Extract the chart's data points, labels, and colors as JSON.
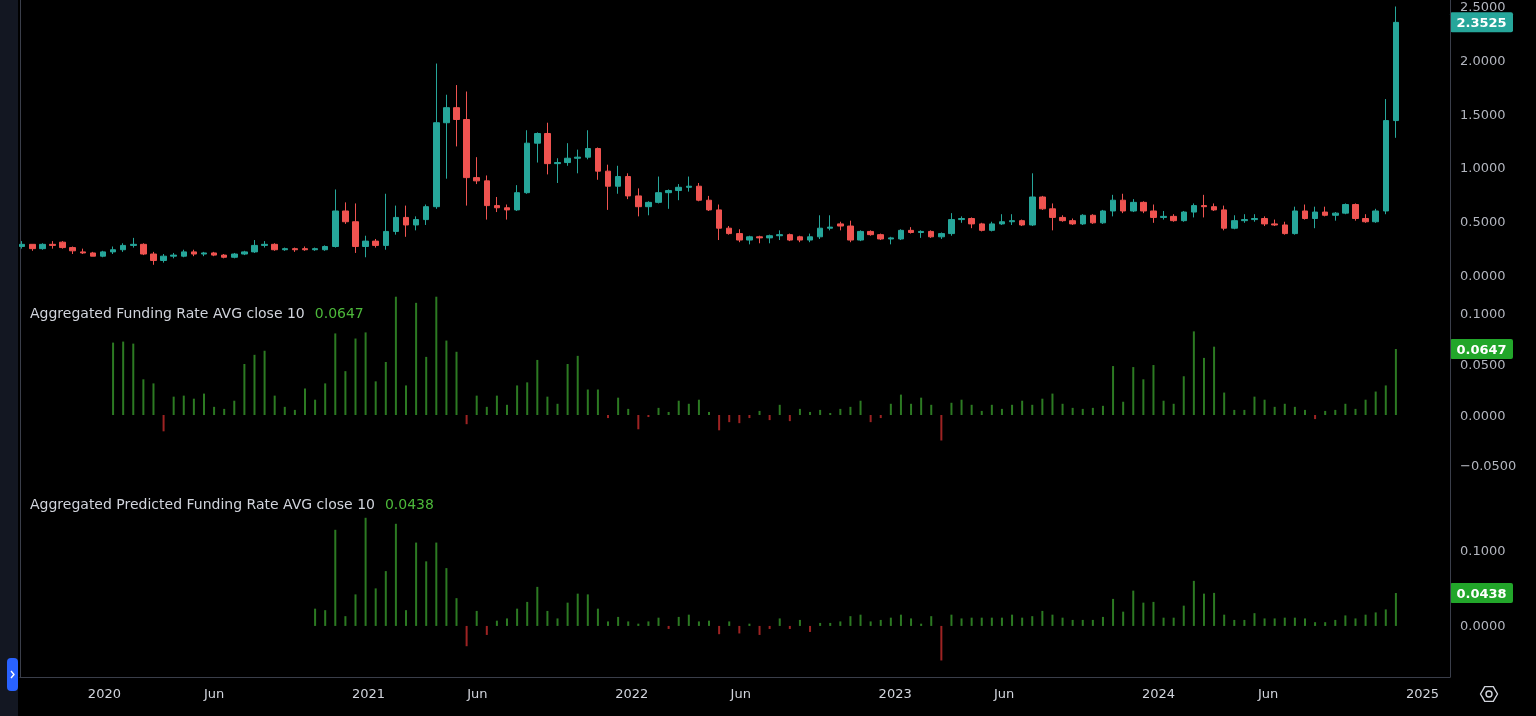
{
  "chart_data": [
    {
      "type": "candlestick",
      "x": [
        "2019-09-09",
        "2019-09-23",
        "2019-10-07",
        "2019-10-21",
        "2019-11-04",
        "2019-11-18",
        "2019-12-02",
        "2019-12-16",
        "2019-12-30",
        "2020-01-13",
        "2020-01-27",
        "2020-02-10",
        "2020-02-24",
        "2020-03-09",
        "2020-03-23",
        "2020-04-06",
        "2020-04-20",
        "2020-05-04",
        "2020-05-18",
        "2020-06-01",
        "2020-06-15",
        "2020-06-29",
        "2020-07-13",
        "2020-07-27",
        "2020-08-10",
        "2020-08-24",
        "2020-09-07",
        "2020-09-21",
        "2020-10-05",
        "2020-10-19",
        "2020-11-02",
        "2020-11-16",
        "2020-11-30",
        "2020-12-14",
        "2020-12-28",
        "2021-01-11",
        "2021-01-25",
        "2021-02-08",
        "2021-02-22",
        "2021-03-08",
        "2021-03-22",
        "2021-04-05",
        "2021-04-19",
        "2021-05-03",
        "2021-05-17",
        "2021-05-31",
        "2021-06-14",
        "2021-06-28",
        "2021-07-12",
        "2021-07-26",
        "2021-08-09",
        "2021-08-23",
        "2021-09-06",
        "2021-09-20",
        "2021-10-04",
        "2021-10-18",
        "2021-11-01",
        "2021-11-15",
        "2021-11-29",
        "2021-12-13",
        "2021-12-27",
        "2022-01-10",
        "2022-01-24",
        "2022-02-07",
        "2022-02-21",
        "2022-03-07",
        "2022-03-21",
        "2022-04-04",
        "2022-04-18",
        "2022-05-02",
        "2022-05-16",
        "2022-05-30",
        "2022-06-13",
        "2022-06-27",
        "2022-07-11",
        "2022-07-25",
        "2022-08-08",
        "2022-08-22",
        "2022-09-05",
        "2022-09-19",
        "2022-10-03",
        "2022-10-17",
        "2022-10-31",
        "2022-11-14",
        "2022-11-28",
        "2022-12-12",
        "2022-12-26",
        "2023-01-09",
        "2023-01-23",
        "2023-02-06",
        "2023-02-20",
        "2023-03-06",
        "2023-03-20",
        "2023-04-03",
        "2023-04-17",
        "2023-05-01",
        "2023-05-15",
        "2023-05-29",
        "2023-06-12",
        "2023-06-26",
        "2023-07-10",
        "2023-07-24",
        "2023-08-07",
        "2023-08-21",
        "2023-09-04",
        "2023-09-18",
        "2023-10-02",
        "2023-10-16",
        "2023-10-30",
        "2023-11-13",
        "2023-11-27",
        "2023-12-11",
        "2023-12-25",
        "2024-01-08",
        "2024-01-22",
        "2024-02-05",
        "2024-02-19",
        "2024-03-04",
        "2024-03-18",
        "2024-04-01",
        "2024-04-15",
        "2024-04-29",
        "2024-05-13",
        "2024-05-27",
        "2024-06-10",
        "2024-06-24",
        "2024-07-08",
        "2024-07-22",
        "2024-08-05",
        "2024-08-19",
        "2024-09-02",
        "2024-09-16",
        "2024-09-30",
        "2024-10-14",
        "2024-10-28",
        "2024-11-11",
        "2024-11-25"
      ],
      "ohlc": [
        [
          0.27,
          0.32,
          0.25,
          0.29
        ],
        [
          0.29,
          0.29,
          0.23,
          0.25
        ],
        [
          0.25,
          0.3,
          0.24,
          0.29
        ],
        [
          0.29,
          0.32,
          0.25,
          0.28
        ],
        [
          0.31,
          0.32,
          0.25,
          0.26
        ],
        [
          0.26,
          0.27,
          0.2,
          0.23
        ],
        [
          0.22,
          0.25,
          0.2,
          0.21
        ],
        [
          0.21,
          0.22,
          0.18,
          0.18
        ],
        [
          0.18,
          0.23,
          0.17,
          0.22
        ],
        [
          0.22,
          0.27,
          0.2,
          0.24
        ],
        [
          0.24,
          0.3,
          0.22,
          0.28
        ],
        [
          0.28,
          0.35,
          0.26,
          0.29
        ],
        [
          0.29,
          0.3,
          0.19,
          0.2
        ],
        [
          0.2,
          0.22,
          0.1,
          0.14
        ],
        [
          0.14,
          0.2,
          0.12,
          0.18
        ],
        [
          0.18,
          0.21,
          0.16,
          0.19
        ],
        [
          0.18,
          0.24,
          0.17,
          0.22
        ],
        [
          0.22,
          0.24,
          0.18,
          0.2
        ],
        [
          0.2,
          0.22,
          0.18,
          0.21
        ],
        [
          0.21,
          0.22,
          0.18,
          0.19
        ],
        [
          0.19,
          0.2,
          0.16,
          0.17
        ],
        [
          0.17,
          0.21,
          0.16,
          0.2
        ],
        [
          0.2,
          0.23,
          0.19,
          0.22
        ],
        [
          0.22,
          0.33,
          0.21,
          0.28
        ],
        [
          0.28,
          0.32,
          0.26,
          0.29
        ],
        [
          0.29,
          0.3,
          0.23,
          0.24
        ],
        [
          0.24,
          0.26,
          0.23,
          0.25
        ],
        [
          0.25,
          0.26,
          0.22,
          0.24
        ],
        [
          0.25,
          0.27,
          0.23,
          0.24
        ],
        [
          0.24,
          0.26,
          0.23,
          0.25
        ],
        [
          0.24,
          0.28,
          0.23,
          0.27
        ],
        [
          0.27,
          0.8,
          0.26,
          0.6
        ],
        [
          0.6,
          0.68,
          0.48,
          0.5
        ],
        [
          0.5,
          0.67,
          0.21,
          0.27
        ],
        [
          0.27,
          0.37,
          0.17,
          0.32
        ],
        [
          0.32,
          0.34,
          0.26,
          0.28
        ],
        [
          0.28,
          0.76,
          0.24,
          0.41
        ],
        [
          0.41,
          0.65,
          0.38,
          0.54
        ],
        [
          0.54,
          0.65,
          0.36,
          0.47
        ],
        [
          0.47,
          0.55,
          0.42,
          0.52
        ],
        [
          0.52,
          0.66,
          0.47,
          0.64
        ],
        [
          0.64,
          1.97,
          0.62,
          1.42
        ],
        [
          1.42,
          1.68,
          0.9,
          1.56
        ],
        [
          1.56,
          1.77,
          1.2,
          1.45
        ],
        [
          1.45,
          1.71,
          0.65,
          0.91
        ],
        [
          0.91,
          1.1,
          0.85,
          0.88
        ],
        [
          0.88,
          0.93,
          0.52,
          0.65
        ],
        [
          0.65,
          0.73,
          0.59,
          0.63
        ],
        [
          0.63,
          0.66,
          0.52,
          0.61
        ],
        [
          0.61,
          0.84,
          0.6,
          0.77
        ],
        [
          0.77,
          1.35,
          0.76,
          1.23
        ],
        [
          1.23,
          1.33,
          1.05,
          1.32
        ],
        [
          1.32,
          1.42,
          0.94,
          1.04
        ],
        [
          1.04,
          1.09,
          0.86,
          1.05
        ],
        [
          1.05,
          1.23,
          1.02,
          1.09
        ],
        [
          1.09,
          1.17,
          0.95,
          1.1
        ],
        [
          1.1,
          1.35,
          1.08,
          1.18
        ],
        [
          1.18,
          1.19,
          0.89,
          0.97
        ],
        [
          0.97,
          1.03,
          0.61,
          0.83
        ],
        [
          0.83,
          1.02,
          0.76,
          0.92
        ],
        [
          0.92,
          0.95,
          0.71,
          0.74
        ],
        [
          0.74,
          0.81,
          0.55,
          0.64
        ],
        [
          0.64,
          0.69,
          0.56,
          0.68
        ],
        [
          0.68,
          0.92,
          0.67,
          0.77
        ],
        [
          0.77,
          0.8,
          0.62,
          0.79
        ],
        [
          0.79,
          0.85,
          0.7,
          0.82
        ],
        [
          0.82,
          0.92,
          0.78,
          0.83
        ],
        [
          0.83,
          0.86,
          0.69,
          0.7
        ],
        [
          0.7,
          0.74,
          0.6,
          0.61
        ],
        [
          0.61,
          0.66,
          0.33,
          0.44
        ],
        [
          0.44,
          0.46,
          0.38,
          0.39
        ],
        [
          0.39,
          0.43,
          0.31,
          0.33
        ],
        [
          0.33,
          0.37,
          0.29,
          0.36
        ],
        [
          0.36,
          0.37,
          0.3,
          0.35
        ],
        [
          0.35,
          0.38,
          0.3,
          0.37
        ],
        [
          0.37,
          0.42,
          0.33,
          0.38
        ],
        [
          0.38,
          0.39,
          0.32,
          0.33
        ],
        [
          0.36,
          0.37,
          0.31,
          0.33
        ],
        [
          0.33,
          0.39,
          0.31,
          0.36
        ],
        [
          0.36,
          0.56,
          0.34,
          0.44
        ],
        [
          0.44,
          0.56,
          0.42,
          0.45
        ],
        [
          0.48,
          0.5,
          0.42,
          0.46
        ],
        [
          0.46,
          0.51,
          0.31,
          0.33
        ],
        [
          0.33,
          0.42,
          0.32,
          0.41
        ],
        [
          0.41,
          0.42,
          0.37,
          0.38
        ],
        [
          0.38,
          0.39,
          0.33,
          0.34
        ],
        [
          0.34,
          0.36,
          0.29,
          0.35
        ],
        [
          0.34,
          0.43,
          0.33,
          0.42
        ],
        [
          0.42,
          0.45,
          0.39,
          0.4
        ],
        [
          0.4,
          0.42,
          0.35,
          0.41
        ],
        [
          0.41,
          0.42,
          0.35,
          0.36
        ],
        [
          0.36,
          0.4,
          0.34,
          0.39
        ],
        [
          0.39,
          0.58,
          0.37,
          0.52
        ],
        [
          0.52,
          0.55,
          0.49,
          0.53
        ],
        [
          0.53,
          0.54,
          0.44,
          0.48
        ],
        [
          0.48,
          0.49,
          0.41,
          0.42
        ],
        [
          0.42,
          0.5,
          0.41,
          0.48
        ],
        [
          0.48,
          0.57,
          0.47,
          0.5
        ],
        [
          0.5,
          0.57,
          0.47,
          0.51
        ],
        [
          0.51,
          0.52,
          0.46,
          0.47
        ],
        [
          0.47,
          0.95,
          0.46,
          0.73
        ],
        [
          0.73,
          0.74,
          0.61,
          0.62
        ],
        [
          0.62,
          0.67,
          0.42,
          0.54
        ],
        [
          0.54,
          0.56,
          0.5,
          0.51
        ],
        [
          0.51,
          0.53,
          0.47,
          0.48
        ],
        [
          0.48,
          0.57,
          0.47,
          0.56
        ],
        [
          0.56,
          0.57,
          0.48,
          0.49
        ],
        [
          0.49,
          0.61,
          0.48,
          0.6
        ],
        [
          0.6,
          0.75,
          0.55,
          0.7
        ],
        [
          0.7,
          0.76,
          0.58,
          0.6
        ],
        [
          0.6,
          0.71,
          0.59,
          0.68
        ],
        [
          0.68,
          0.69,
          0.58,
          0.6
        ],
        [
          0.6,
          0.66,
          0.49,
          0.54
        ],
        [
          0.54,
          0.6,
          0.52,
          0.55
        ],
        [
          0.55,
          0.57,
          0.5,
          0.51
        ],
        [
          0.51,
          0.6,
          0.5,
          0.59
        ],
        [
          0.59,
          0.67,
          0.54,
          0.65
        ],
        [
          0.65,
          0.75,
          0.54,
          0.64
        ],
        [
          0.64,
          0.67,
          0.6,
          0.61
        ],
        [
          0.61,
          0.65,
          0.42,
          0.44
        ],
        [
          0.44,
          0.56,
          0.43,
          0.51
        ],
        [
          0.51,
          0.57,
          0.49,
          0.52
        ],
        [
          0.52,
          0.57,
          0.5,
          0.53
        ],
        [
          0.53,
          0.55,
          0.46,
          0.48
        ],
        [
          0.48,
          0.52,
          0.46,
          0.47
        ],
        [
          0.47,
          0.5,
          0.38,
          0.39
        ],
        [
          0.39,
          0.64,
          0.38,
          0.6
        ],
        [
          0.6,
          0.66,
          0.52,
          0.53
        ],
        [
          0.53,
          0.64,
          0.44,
          0.59
        ],
        [
          0.59,
          0.64,
          0.55,
          0.56
        ],
        [
          0.56,
          0.59,
          0.51,
          0.58
        ],
        [
          0.58,
          0.67,
          0.57,
          0.66
        ],
        [
          0.66,
          0.67,
          0.51,
          0.53
        ],
        [
          0.53,
          0.57,
          0.49,
          0.5
        ],
        [
          0.5,
          0.62,
          0.49,
          0.6
        ],
        [
          0.6,
          1.64,
          0.57,
          1.44
        ],
        [
          1.44,
          2.5,
          1.28,
          2.3525
        ]
      ],
      "colors": [
        "#26a69a",
        "#ef5350",
        "#26a69a",
        "#ef5350",
        "#ef5350",
        "#ef5350",
        "#ef5350",
        "#ef5350",
        "#26a69a",
        "#26a69a",
        "#26a69a",
        "#26a69a",
        "#ef5350",
        "#ef5350",
        "#26a69a",
        "#26a69a",
        "#26a69a",
        "#ef5350",
        "#26a69a",
        "#ef5350",
        "#ef5350",
        "#26a69a",
        "#26a69a",
        "#26a69a",
        "#26a69a",
        "#ef5350",
        "#26a69a",
        "#ef5350",
        "#ef5350",
        "#26a69a",
        "#26a69a",
        "#26a69a",
        "#ef5350",
        "#ef5350",
        "#26a69a",
        "#ef5350",
        "#26a69a",
        "#26a69a",
        "#ef5350",
        "#26a69a",
        "#26a69a",
        "#26a69a",
        "#26a69a",
        "#ef5350",
        "#ef5350",
        "#ef5350",
        "#ef5350",
        "#ef5350",
        "#ef5350",
        "#26a69a",
        "#26a69a",
        "#26a69a",
        "#ef5350",
        "#26a69a",
        "#26a69a",
        "#26a69a",
        "#26a69a",
        "#ef5350",
        "#ef5350",
        "#26a69a",
        "#ef5350",
        "#ef5350",
        "#26a69a",
        "#26a69a",
        "#26a69a",
        "#26a69a",
        "#26a69a",
        "#ef5350",
        "#ef5350",
        "#ef5350",
        "#ef5350",
        "#ef5350",
        "#26a69a",
        "#ef5350",
        "#26a69a",
        "#26a69a",
        "#ef5350",
        "#ef5350",
        "#26a69a",
        "#26a69a",
        "#26a69a",
        "#ef5350",
        "#ef5350",
        "#26a69a",
        "#ef5350",
        "#ef5350",
        "#26a69a",
        "#26a69a",
        "#ef5350",
        "#26a69a",
        "#ef5350",
        "#26a69a",
        "#26a69a",
        "#26a69a",
        "#ef5350",
        "#ef5350",
        "#26a69a",
        "#26a69a",
        "#26a69a",
        "#ef5350",
        "#26a69a",
        "#ef5350",
        "#ef5350",
        "#ef5350",
        "#ef5350",
        "#26a69a",
        "#ef5350",
        "#26a69a",
        "#26a69a",
        "#ef5350",
        "#26a69a",
        "#ef5350",
        "#ef5350",
        "#26a69a",
        "#ef5350",
        "#26a69a",
        "#26a69a",
        "#ef5350",
        "#ef5350",
        "#ef5350",
        "#26a69a",
        "#26a69a",
        "#26a69a",
        "#ef5350",
        "#ef5350",
        "#ef5350",
        "#26a69a",
        "#ef5350",
        "#26a69a",
        "#ef5350",
        "#26a69a",
        "#26a69a",
        "#ef5350",
        "#ef5350",
        "#26a69a",
        "#26a69a",
        "#26a69a"
      ],
      "xlim": [
        "2019-09-06",
        "2025-02-08"
      ],
      "ylim": [
        -0.19,
        2.56
      ],
      "yticks": [
        {
          "value": 0,
          "label": "0.0000"
        },
        {
          "value": 0.5,
          "label": "0.5000"
        },
        {
          "value": 1,
          "label": "1.0000"
        },
        {
          "value": 1.5,
          "label": "1.5000"
        },
        {
          "value": 2,
          "label": "2.0000"
        },
        {
          "value": 2.5,
          "label": "2.5000"
        }
      ],
      "tick_labels": "y",
      "grid": false,
      "annotations": [
        "2.3525"
      ]
    },
    {
      "type": "bar",
      "title": "Aggregated Funding Rate AVG close 10",
      "x": [
        "2020-01-13",
        "2020-01-27",
        "2020-02-10",
        "2020-02-24",
        "2020-03-09",
        "2020-03-23",
        "2020-04-06",
        "2020-04-20",
        "2020-05-04",
        "2020-05-18",
        "2020-06-01",
        "2020-06-15",
        "2020-06-29",
        "2020-07-13",
        "2020-07-27",
        "2020-08-10",
        "2020-08-24",
        "2020-09-07",
        "2020-09-21",
        "2020-10-05",
        "2020-10-19",
        "2020-11-02",
        "2020-11-16",
        "2020-11-30",
        "2020-12-14",
        "2020-12-28",
        "2021-01-11",
        "2021-01-25",
        "2021-02-08",
        "2021-02-22",
        "2021-03-08",
        "2021-03-22",
        "2021-04-05",
        "2021-04-19",
        "2021-05-03",
        "2021-05-17",
        "2021-05-31",
        "2021-06-14",
        "2021-06-28",
        "2021-07-12",
        "2021-07-26",
        "2021-08-09",
        "2021-08-23",
        "2021-09-06",
        "2021-09-20",
        "2021-10-04",
        "2021-10-18",
        "2021-11-01",
        "2021-11-15",
        "2021-11-29",
        "2021-12-13",
        "2021-12-27",
        "2022-01-10",
        "2022-01-24",
        "2022-02-07",
        "2022-02-21",
        "2022-03-07",
        "2022-03-21",
        "2022-04-04",
        "2022-04-18",
        "2022-05-02",
        "2022-05-16",
        "2022-05-30",
        "2022-06-13",
        "2022-06-27",
        "2022-07-11",
        "2022-07-25",
        "2022-08-08",
        "2022-08-22",
        "2022-09-05",
        "2022-09-19",
        "2022-10-03",
        "2022-10-17",
        "2022-10-31",
        "2022-11-14",
        "2022-11-28",
        "2022-12-12",
        "2022-12-26",
        "2023-01-09",
        "2023-01-23",
        "2023-02-06",
        "2023-02-20",
        "2023-03-06",
        "2023-03-20",
        "2023-04-03",
        "2023-04-17",
        "2023-05-01",
        "2023-05-15",
        "2023-05-29",
        "2023-06-12",
        "2023-06-26",
        "2023-07-10",
        "2023-07-24",
        "2023-08-07",
        "2023-08-21",
        "2023-09-04",
        "2023-09-18",
        "2023-10-02",
        "2023-10-16",
        "2023-10-30",
        "2023-11-13",
        "2023-11-27",
        "2023-12-11",
        "2023-12-25",
        "2024-01-08",
        "2024-01-22",
        "2024-02-05",
        "2024-02-19",
        "2024-03-04",
        "2024-03-18",
        "2024-04-01",
        "2024-04-15",
        "2024-04-29",
        "2024-05-13",
        "2024-05-27",
        "2024-06-10",
        "2024-06-24",
        "2024-07-08",
        "2024-07-22",
        "2024-08-05",
        "2024-08-19",
        "2024-09-02",
        "2024-09-16",
        "2024-09-30",
        "2024-10-14",
        "2024-10-28",
        "2024-11-11",
        "2024-11-25"
      ],
      "values": [
        0.071,
        0.072,
        0.07,
        0.035,
        0.031,
        -0.016,
        0.018,
        0.019,
        0.016,
        0.021,
        0.008,
        0.006,
        0.014,
        0.05,
        0.059,
        0.063,
        0.019,
        0.008,
        0.005,
        0.026,
        0.015,
        0.031,
        0.08,
        0.043,
        0.075,
        0.081,
        0.033,
        0.052,
        0.116,
        0.029,
        0.11,
        0.057,
        0.116,
        0.073,
        0.062,
        -0.009,
        0.019,
        0.008,
        0.019,
        0.01,
        0.029,
        0.032,
        0.054,
        0.018,
        0.011,
        0.05,
        0.058,
        0.025,
        0.025,
        -0.003,
        0.017,
        0.006,
        -0.014,
        -0.002,
        0.007,
        0.003,
        0.014,
        0.011,
        0.015,
        0.003,
        -0.015,
        -0.007,
        -0.008,
        -0.003,
        0.004,
        -0.005,
        0.01,
        -0.006,
        0.006,
        0.003,
        0.005,
        0.002,
        0.006,
        0.008,
        0.014,
        -0.007,
        -0.003,
        0.011,
        0.02,
        0.011,
        0.017,
        0.01,
        -0.025,
        0.012,
        0.015,
        0.01,
        0.004,
        0.01,
        0.006,
        0.01,
        0.014,
        0.01,
        0.016,
        0.021,
        0.011,
        0.007,
        0.006,
        0.007,
        0.009,
        0.048,
        0.013,
        0.047,
        0.035,
        0.049,
        0.014,
        0.011,
        0.038,
        0.082,
        0.056,
        0.067,
        0.022,
        0.005,
        0.005,
        0.018,
        0.015,
        0.008,
        0.011,
        0.008,
        0.005,
        -0.004,
        0.004,
        0.005,
        0.011,
        0.006,
        0.015,
        0.023,
        0.029,
        0.0647
      ],
      "colors": [
        "#2c7a22",
        "#2c7a22",
        "#2c7a22",
        "#2c7a22",
        "#2c7a22",
        "#9e2323",
        "#2c7a22",
        "#2c7a22",
        "#2c7a22",
        "#2c7a22",
        "#2c7a22",
        "#2c7a22",
        "#2c7a22",
        "#2c7a22",
        "#2c7a22",
        "#2c7a22",
        "#2c7a22",
        "#2c7a22",
        "#2c7a22",
        "#2c7a22",
        "#2c7a22",
        "#2c7a22",
        "#2c7a22",
        "#2c7a22",
        "#2c7a22",
        "#2c7a22",
        "#2c7a22",
        "#2c7a22",
        "#2c7a22",
        "#2c7a22",
        "#2c7a22",
        "#2c7a22",
        "#2c7a22",
        "#2c7a22",
        "#2c7a22",
        "#9e2323",
        "#2c7a22",
        "#2c7a22",
        "#2c7a22",
        "#2c7a22",
        "#2c7a22",
        "#2c7a22",
        "#2c7a22",
        "#2c7a22",
        "#2c7a22",
        "#2c7a22",
        "#2c7a22",
        "#2c7a22",
        "#2c7a22",
        "#9e2323",
        "#2c7a22",
        "#2c7a22",
        "#9e2323",
        "#9e2323",
        "#2c7a22",
        "#2c7a22",
        "#2c7a22",
        "#2c7a22",
        "#2c7a22",
        "#2c7a22",
        "#9e2323",
        "#9e2323",
        "#9e2323",
        "#9e2323",
        "#2c7a22",
        "#9e2323",
        "#2c7a22",
        "#9e2323",
        "#2c7a22",
        "#2c7a22",
        "#2c7a22",
        "#2c7a22",
        "#2c7a22",
        "#2c7a22",
        "#2c7a22",
        "#9e2323",
        "#9e2323",
        "#2c7a22",
        "#2c7a22",
        "#2c7a22",
        "#2c7a22",
        "#2c7a22",
        "#9e2323",
        "#2c7a22",
        "#2c7a22",
        "#2c7a22",
        "#2c7a22",
        "#2c7a22",
        "#2c7a22",
        "#2c7a22",
        "#2c7a22",
        "#2c7a22",
        "#2c7a22",
        "#2c7a22",
        "#2c7a22",
        "#2c7a22",
        "#2c7a22",
        "#2c7a22",
        "#2c7a22",
        "#2c7a22",
        "#2c7a22",
        "#2c7a22",
        "#2c7a22",
        "#2c7a22",
        "#2c7a22",
        "#2c7a22",
        "#2c7a22",
        "#2c7a22",
        "#2c7a22",
        "#2c7a22",
        "#2c7a22",
        "#2c7a22",
        "#2c7a22",
        "#2c7a22",
        "#2c7a22",
        "#2c7a22",
        "#2c7a22",
        "#2c7a22",
        "#2c7a22",
        "#9e2323",
        "#2c7a22",
        "#2c7a22",
        "#2c7a22",
        "#2c7a22",
        "#2c7a22",
        "#2c7a22",
        "#2c7a22",
        "#2c7a22"
      ],
      "xlim": [
        "2019-09-06",
        "2025-02-08"
      ],
      "ylim": [
        -0.0706,
        0.1167
      ],
      "yticks": [
        {
          "value": -0.05,
          "label": "−0.0500"
        },
        {
          "value": 0,
          "label": "0.0000"
        },
        {
          "value": 0.05,
          "label": "0.0500"
        },
        {
          "value": 0.1,
          "label": "0.1000"
        }
      ],
      "tick_labels": "y",
      "grid": false,
      "annotations": [
        "0.0647",
        "0.0647"
      ]
    },
    {
      "type": "bar",
      "title": "Aggregated Predicted Funding Rate AVG close 10",
      "x": [
        "2020-10-19",
        "2020-11-02",
        "2020-11-16",
        "2020-11-30",
        "2020-12-14",
        "2020-12-28",
        "2021-01-11",
        "2021-01-25",
        "2021-02-08",
        "2021-02-22",
        "2021-03-08",
        "2021-03-22",
        "2021-04-05",
        "2021-04-19",
        "2021-05-03",
        "2021-05-17",
        "2021-05-31",
        "2021-06-14",
        "2021-06-28",
        "2021-07-12",
        "2021-07-26",
        "2021-08-09",
        "2021-08-23",
        "2021-09-06",
        "2021-09-20",
        "2021-10-04",
        "2021-10-18",
        "2021-11-01",
        "2021-11-15",
        "2021-11-29",
        "2021-12-13",
        "2021-12-27",
        "2022-01-10",
        "2022-01-24",
        "2022-02-07",
        "2022-02-21",
        "2022-03-07",
        "2022-03-21",
        "2022-04-04",
        "2022-04-18",
        "2022-05-02",
        "2022-05-16",
        "2022-05-30",
        "2022-06-13",
        "2022-06-27",
        "2022-07-11",
        "2022-07-25",
        "2022-08-08",
        "2022-08-22",
        "2022-09-05",
        "2022-09-19",
        "2022-10-03",
        "2022-10-17",
        "2022-10-31",
        "2022-11-14",
        "2022-11-28",
        "2022-12-12",
        "2022-12-26",
        "2023-01-09",
        "2023-01-23",
        "2023-02-06",
        "2023-02-20",
        "2023-03-06",
        "2023-03-20",
        "2023-04-03",
        "2023-04-17",
        "2023-05-01",
        "2023-05-15",
        "2023-05-29",
        "2023-06-12",
        "2023-06-26",
        "2023-07-10",
        "2023-07-24",
        "2023-08-07",
        "2023-08-21",
        "2023-09-04",
        "2023-09-18",
        "2023-10-02",
        "2023-10-16",
        "2023-10-30",
        "2023-11-13",
        "2023-11-27",
        "2023-12-11",
        "2023-12-25",
        "2024-01-08",
        "2024-01-22",
        "2024-02-05",
        "2024-02-19",
        "2024-03-04",
        "2024-03-18",
        "2024-04-01",
        "2024-04-15",
        "2024-04-29",
        "2024-05-13",
        "2024-05-27",
        "2024-06-10",
        "2024-06-24",
        "2024-07-08",
        "2024-07-22",
        "2024-08-05",
        "2024-08-19",
        "2024-09-02",
        "2024-09-16",
        "2024-09-30",
        "2024-10-14",
        "2024-10-28",
        "2024-11-11",
        "2024-11-25"
      ],
      "values": [
        0.023,
        0.021,
        0.128,
        0.013,
        0.042,
        0.144,
        0.05,
        0.073,
        0.136,
        0.021,
        0.111,
        0.086,
        0.111,
        0.077,
        0.037,
        -0.027,
        0.02,
        -0.012,
        0.007,
        0.01,
        0.023,
        0.032,
        0.052,
        0.02,
        0.01,
        0.031,
        0.043,
        0.042,
        0.023,
        0.006,
        0.012,
        0.006,
        0.003,
        0.006,
        0.011,
        -0.004,
        0.012,
        0.015,
        0.006,
        0.007,
        -0.011,
        0.006,
        -0.01,
        0.003,
        -0.012,
        -0.004,
        0.01,
        -0.004,
        0.008,
        -0.008,
        0.004,
        0.004,
        0.006,
        0.013,
        0.015,
        0.006,
        0.008,
        0.011,
        0.015,
        0.01,
        0.003,
        0.013,
        -0.046,
        0.015,
        0.01,
        0.011,
        0.011,
        0.011,
        0.011,
        0.015,
        0.011,
        0.013,
        0.02,
        0.015,
        0.011,
        0.008,
        0.008,
        0.008,
        0.012,
        0.036,
        0.019,
        0.047,
        0.031,
        0.032,
        0.011,
        0.011,
        0.027,
        0.06,
        0.043,
        0.044,
        0.015,
        0.008,
        0.008,
        0.017,
        0.01,
        0.01,
        0.011,
        0.011,
        0.01,
        0.005,
        0.005,
        0.008,
        0.014,
        0.01,
        0.015,
        0.018,
        0.022,
        0.0438
      ],
      "colors": [
        "#2c7a22",
        "#2c7a22",
        "#2c7a22",
        "#2c7a22",
        "#2c7a22",
        "#2c7a22",
        "#2c7a22",
        "#2c7a22",
        "#2c7a22",
        "#2c7a22",
        "#2c7a22",
        "#2c7a22",
        "#2c7a22",
        "#2c7a22",
        "#2c7a22",
        "#9e2323",
        "#2c7a22",
        "#9e2323",
        "#2c7a22",
        "#2c7a22",
        "#2c7a22",
        "#2c7a22",
        "#2c7a22",
        "#2c7a22",
        "#2c7a22",
        "#2c7a22",
        "#2c7a22",
        "#2c7a22",
        "#2c7a22",
        "#2c7a22",
        "#2c7a22",
        "#2c7a22",
        "#2c7a22",
        "#2c7a22",
        "#2c7a22",
        "#9e2323",
        "#2c7a22",
        "#2c7a22",
        "#2c7a22",
        "#2c7a22",
        "#9e2323",
        "#2c7a22",
        "#9e2323",
        "#2c7a22",
        "#9e2323",
        "#9e2323",
        "#2c7a22",
        "#9e2323",
        "#2c7a22",
        "#9e2323",
        "#2c7a22",
        "#2c7a22",
        "#2c7a22",
        "#2c7a22",
        "#2c7a22",
        "#2c7a22",
        "#2c7a22",
        "#2c7a22",
        "#2c7a22",
        "#2c7a22",
        "#2c7a22",
        "#2c7a22",
        "#9e2323",
        "#2c7a22",
        "#2c7a22",
        "#2c7a22",
        "#2c7a22",
        "#2c7a22",
        "#2c7a22",
        "#2c7a22",
        "#2c7a22",
        "#2c7a22",
        "#2c7a22",
        "#2c7a22",
        "#2c7a22",
        "#2c7a22",
        "#2c7a22",
        "#2c7a22",
        "#2c7a22",
        "#2c7a22",
        "#2c7a22",
        "#2c7a22",
        "#2c7a22",
        "#2c7a22",
        "#2c7a22",
        "#2c7a22",
        "#2c7a22",
        "#2c7a22",
        "#2c7a22",
        "#2c7a22",
        "#2c7a22",
        "#2c7a22",
        "#2c7a22",
        "#2c7a22",
        "#2c7a22",
        "#2c7a22",
        "#2c7a22",
        "#2c7a22",
        "#2c7a22",
        "#2c7a22",
        "#2c7a22",
        "#2c7a22",
        "#2c7a22",
        "#2c7a22",
        "#2c7a22",
        "#2c7a22",
        "#2c7a22",
        "#2c7a22"
      ],
      "xlim": [
        "2019-09-06",
        "2025-02-08"
      ],
      "ylim": [
        -0.068,
        0.185
      ],
      "xticks": [
        {
          "value": "2020-01-01",
          "label": "2020"
        },
        {
          "value": "2020-06-01",
          "label": "Jun"
        },
        {
          "value": "2021-01-01",
          "label": "2021"
        },
        {
          "value": "2021-06-01",
          "label": "Jun"
        },
        {
          "value": "2022-01-01",
          "label": "2022"
        },
        {
          "value": "2022-06-01",
          "label": "Jun"
        },
        {
          "value": "2023-01-01",
          "label": "2023"
        },
        {
          "value": "2023-06-01",
          "label": "Jun"
        },
        {
          "value": "2024-01-01",
          "label": "2024"
        },
        {
          "value": "2024-06-01",
          "label": "Jun"
        },
        {
          "value": "2025-01-01",
          "label": "2025"
        }
      ],
      "yticks": [
        {
          "value": 0,
          "label": "0.0000"
        },
        {
          "value": 0.1,
          "label": "0.1000"
        }
      ],
      "grid": false,
      "annotations": [
        "0.0438",
        "0.0438"
      ]
    }
  ]
}
